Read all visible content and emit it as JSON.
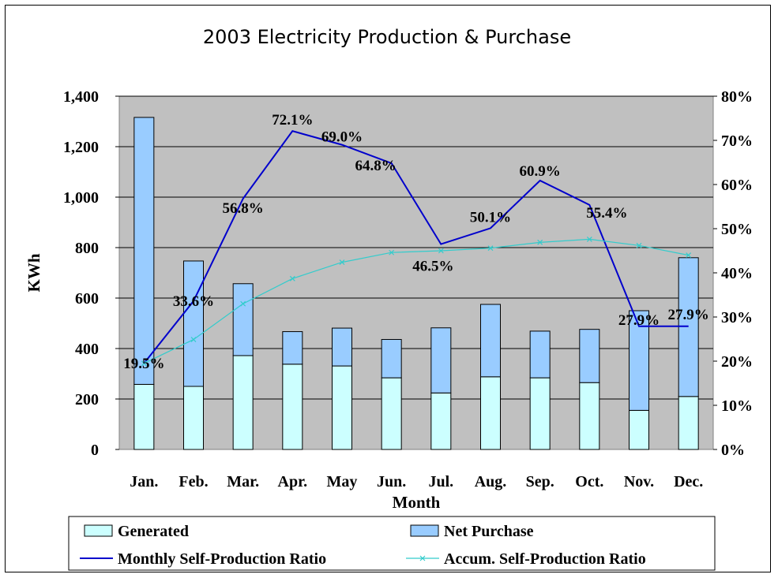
{
  "chart_data": {
    "type": "bar",
    "title": "2003 Electricity Production & Purchase",
    "xlabel": "Month",
    "ylabel": "KWh",
    "categories": [
      "Jan.",
      "Feb.",
      "Mar.",
      "Apr.",
      "May",
      "Jun.",
      "Jul.",
      "Aug.",
      "Sep.",
      "Oct.",
      "Nov.",
      "Dec."
    ],
    "ylim": [
      0,
      1400
    ],
    "y_ticks": [
      "0",
      "200",
      "400",
      "600",
      "800",
      "1,000",
      "1,200",
      "1,400"
    ],
    "y2lim": [
      0,
      0.8
    ],
    "y2_ticks": [
      "0%",
      "10%",
      "20%",
      "30%",
      "40%",
      "50%",
      "60%",
      "70%",
      "80%"
    ],
    "grid": true,
    "stacked": true,
    "legend_position": "bottom",
    "series": [
      {
        "name": "Generated",
        "kind": "bar",
        "axis": "left",
        "color": "#ccffff",
        "values": [
          258,
          250,
          372,
          338,
          331,
          284,
          224,
          288,
          284,
          265,
          155,
          210
        ]
      },
      {
        "name": "Net Purchase",
        "kind": "bar",
        "axis": "left",
        "color": "#99ccff",
        "values": [
          1058,
          497,
          285,
          129,
          150,
          152,
          258,
          287,
          185,
          211,
          395,
          550
        ]
      },
      {
        "name": "Monthly Self-Production Ratio",
        "kind": "line",
        "axis": "right",
        "color": "#0000cc",
        "values": [
          0.195,
          0.336,
          0.568,
          0.721,
          0.69,
          0.648,
          0.465,
          0.501,
          0.609,
          0.554,
          0.279,
          0.279
        ],
        "labels": [
          "19.5%",
          "33.6%",
          "56.8%",
          "72.1%",
          "69.0%",
          "64.8%",
          "46.5%",
          "50.1%",
          "60.9%",
          "55.4%",
          "27.9%",
          "27.9%"
        ]
      },
      {
        "name": "Accum. Self-Production Ratio",
        "kind": "line",
        "axis": "right",
        "color": "#33cccc",
        "values": [
          0.195,
          0.249,
          0.33,
          0.387,
          0.424,
          0.446,
          0.45,
          0.456,
          0.469,
          0.476,
          0.462,
          0.44
        ]
      }
    ]
  },
  "colors": {
    "plot_background": "#c0c0c0",
    "gridline": "#000000"
  }
}
